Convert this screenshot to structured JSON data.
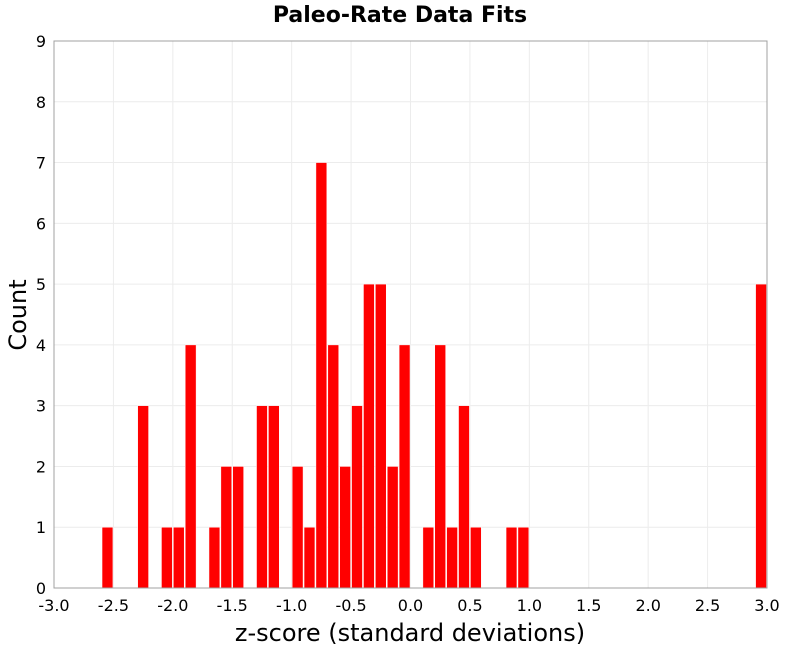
{
  "chart_data": {
    "type": "bar",
    "title": "Paleo-Rate Data Fits",
    "xlabel": "z-score (standard deviations)",
    "ylabel": "Count",
    "xlim": [
      -3.0,
      3.0
    ],
    "ylim": [
      0,
      9
    ],
    "bin_width": 0.1,
    "x_ticks": [
      "-3.0",
      "-2.5",
      "-2.0",
      "-1.5",
      "-1.0",
      "-0.5",
      "0.0",
      "0.5",
      "1.0",
      "1.5",
      "2.0",
      "2.5",
      "3.0"
    ],
    "y_ticks": [
      "0",
      "1",
      "2",
      "3",
      "4",
      "5",
      "6",
      "7",
      "8",
      "9"
    ],
    "grid": true,
    "bar_color": "#ff0000",
    "bars": [
      {
        "x": -2.55,
        "count": 1
      },
      {
        "x": -2.25,
        "count": 3
      },
      {
        "x": -2.05,
        "count": 1
      },
      {
        "x": -1.95,
        "count": 1
      },
      {
        "x": -1.85,
        "count": 4
      },
      {
        "x": -1.65,
        "count": 1
      },
      {
        "x": -1.55,
        "count": 2
      },
      {
        "x": -1.45,
        "count": 2
      },
      {
        "x": -1.25,
        "count": 3
      },
      {
        "x": -1.15,
        "count": 3
      },
      {
        "x": -0.95,
        "count": 2
      },
      {
        "x": -0.85,
        "count": 1
      },
      {
        "x": -0.75,
        "count": 7
      },
      {
        "x": -0.65,
        "count": 4
      },
      {
        "x": -0.55,
        "count": 2
      },
      {
        "x": -0.45,
        "count": 3
      },
      {
        "x": -0.35,
        "count": 5
      },
      {
        "x": -0.25,
        "count": 5
      },
      {
        "x": -0.15,
        "count": 2
      },
      {
        "x": -0.05,
        "count": 4
      },
      {
        "x": 0.15,
        "count": 1
      },
      {
        "x": 0.25,
        "count": 4
      },
      {
        "x": 0.35,
        "count": 1
      },
      {
        "x": 0.45,
        "count": 3
      },
      {
        "x": 0.55,
        "count": 1
      },
      {
        "x": 0.85,
        "count": 1
      },
      {
        "x": 0.95,
        "count": 1
      },
      {
        "x": 2.95,
        "count": 5
      }
    ]
  }
}
